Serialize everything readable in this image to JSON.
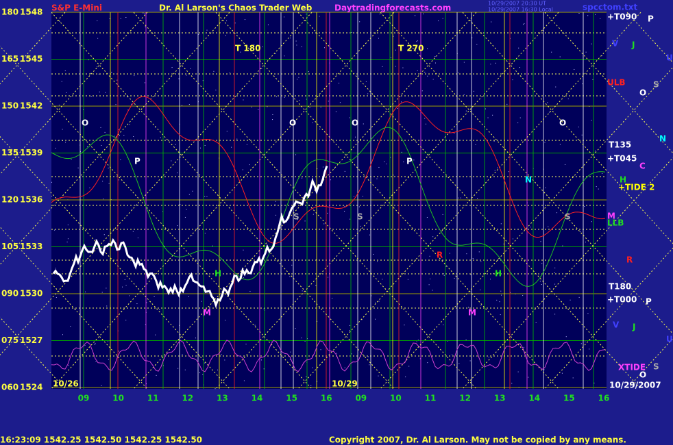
{
  "header": {
    "title": "S&P E-Mini",
    "subtitle": "Dr. Al Larson's Chaos Trader Web",
    "site": "Daytradingforecasts.com",
    "time_utc": "10/29/2007 20:30 UT",
    "time_local": "10/29/2007 16:30 Local",
    "file": "spcctom.txt"
  },
  "y_labels": [
    [
      "180",
      "1548"
    ],
    [
      "165",
      "1545"
    ],
    [
      "150",
      "1542"
    ],
    [
      "135",
      "1539"
    ],
    [
      "120",
      "1536"
    ],
    [
      "105",
      "1533"
    ],
    [
      "090",
      "1530"
    ],
    [
      "075",
      "1527"
    ],
    [
      "060",
      "1524"
    ]
  ],
  "x_labels": [
    "09",
    "10",
    "11",
    "12",
    "13",
    "14",
    "15",
    "16",
    "09",
    "10",
    "11",
    "12",
    "13",
    "14",
    "15",
    "16"
  ],
  "plot_labels": [
    "10/26",
    "10/29",
    "T 180",
    "T 270",
    "O",
    "O",
    "O",
    "O",
    "P",
    "P",
    "S",
    "S",
    "S",
    "M",
    "M",
    "H",
    "H",
    "R",
    "N"
  ],
  "right_labels": [
    "+T090",
    "P",
    "V",
    "J",
    "U",
    "ULB",
    "O",
    "S",
    "N",
    "T135",
    "+T045",
    "C",
    "H",
    "+TIDE 2",
    "M",
    "LLB",
    "R",
    "T180",
    "+T000",
    "P",
    "V",
    "J",
    "U",
    "XTIDE",
    "S",
    "O",
    "10/29/2007"
  ],
  "footer": {
    "quote": "16:23:09  1542.25 1542.50 1542.25 1542.50",
    "copyright": "Copyright 2007, Dr. Al Larson. May not be copied by any means."
  }
}
